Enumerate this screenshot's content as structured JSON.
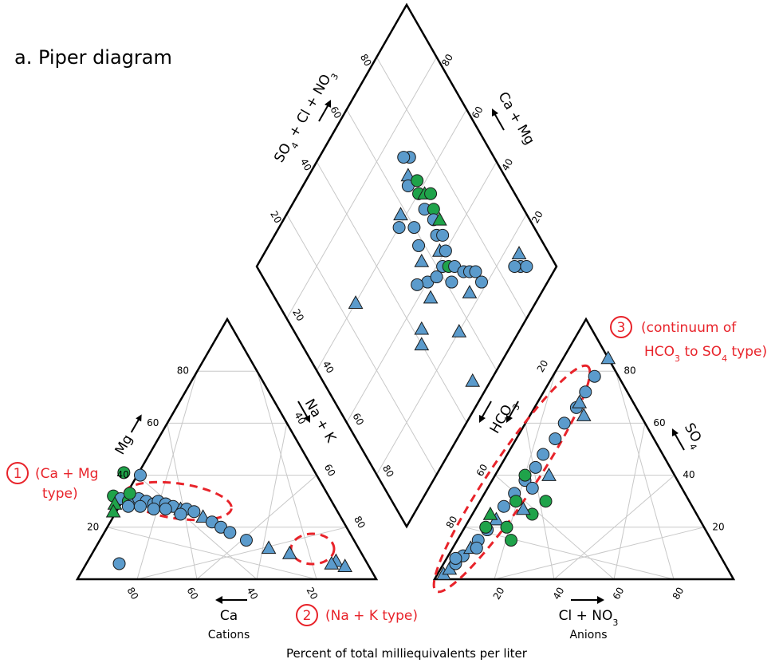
{
  "figure": {
    "title": "a. Piper diagram",
    "footer": "Percent of total milliequivalents per liter"
  },
  "cation_triangle": {
    "axis_mg": "Mg",
    "axis_ca": "Ca",
    "axis_nak": "Na + K",
    "caption": "Cations",
    "ticks_mg": [
      "20",
      "40",
      "60",
      "80"
    ],
    "ticks_ca": [
      "80",
      "60",
      "40",
      "20"
    ],
    "ticks_nak": [
      "40",
      "60",
      "80"
    ]
  },
  "anion_triangle": {
    "axis_so4": "SO",
    "axis_so4_sub": "4",
    "axis_cl": "Cl + NO",
    "axis_cl_sub": "3",
    "axis_hco3": "HCO",
    "axis_hco3_sub": "3",
    "caption": "Anions",
    "ticks_so4": [
      "20",
      "40",
      "60",
      "80"
    ],
    "ticks_cl": [
      "20",
      "40",
      "60",
      "80"
    ],
    "ticks_hco3": [
      "20",
      "60",
      "80"
    ]
  },
  "diamond": {
    "axis_left": "SO",
    "axis_left_sub1": "4",
    "axis_left_mid": " + Cl + NO",
    "axis_left_sub2": "3",
    "axis_right": "Ca + Mg",
    "ticks_left": [
      "20",
      "40",
      "60",
      "80"
    ],
    "ticks_right": [
      "20",
      "40",
      "60",
      "80"
    ],
    "ticks_lower": [
      "20",
      "40",
      "60",
      "80"
    ]
  },
  "annotations": [
    {
      "number": "1",
      "text_line1": "(Ca + Mg",
      "text_line2": "type)"
    },
    {
      "number": "2",
      "text_line1": "(Na + K type)"
    },
    {
      "number": "3",
      "text_line1": "(continuum of",
      "text_line2a": "HCO",
      "text_line2_sub1": "3",
      "text_line2b": " to SO",
      "text_line2_sub2": "4",
      "text_line2c": " type)"
    }
  ],
  "colors": {
    "blue": "#5b9bcc",
    "green": "#1fa34a",
    "annotation_red": "#e8232a",
    "grid": "#c8c8c8",
    "frame": "#000000"
  },
  "chart_data": {
    "type": "scatter",
    "marker_legend": {
      "circle": "circle marker",
      "triangle": "triangle marker"
    },
    "cations": [
      {
        "ca": 72,
        "mg": 32,
        "m": "c",
        "c": "g"
      },
      {
        "ca": 70,
        "mg": 31,
        "m": "c",
        "c": "b"
      },
      {
        "ca": 68,
        "mg": 30,
        "m": "c",
        "c": "g"
      },
      {
        "ca": 66,
        "mg": 30,
        "m": "c",
        "c": "b"
      },
      {
        "ca": 64,
        "mg": 31,
        "m": "c",
        "c": "b"
      },
      {
        "ca": 62,
        "mg": 30,
        "m": "c",
        "c": "b"
      },
      {
        "ca": 60,
        "mg": 29,
        "m": "c",
        "c": "b"
      },
      {
        "ca": 58,
        "mg": 30,
        "m": "c",
        "c": "b"
      },
      {
        "ca": 56,
        "mg": 29,
        "m": "c",
        "c": "b"
      },
      {
        "ca": 54,
        "mg": 28,
        "m": "c",
        "c": "b"
      },
      {
        "ca": 52,
        "mg": 27,
        "m": "t",
        "c": "b"
      },
      {
        "ca": 50,
        "mg": 27,
        "m": "c",
        "c": "b"
      },
      {
        "ca": 48,
        "mg": 26,
        "m": "c",
        "c": "b"
      },
      {
        "ca": 46,
        "mg": 24,
        "m": "t",
        "c": "b"
      },
      {
        "ca": 44,
        "mg": 22,
        "m": "c",
        "c": "b"
      },
      {
        "ca": 42,
        "mg": 20,
        "m": "c",
        "c": "b"
      },
      {
        "ca": 40,
        "mg": 18,
        "m": "c",
        "c": "b"
      },
      {
        "ca": 36,
        "mg": 15,
        "m": "c",
        "c": "b"
      },
      {
        "ca": 30,
        "mg": 12,
        "m": "t",
        "c": "b"
      },
      {
        "ca": 24,
        "mg": 10,
        "m": "t",
        "c": "b"
      },
      {
        "ca": 73,
        "mg": 29,
        "m": "t",
        "c": "g"
      },
      {
        "ca": 69,
        "mg": 28,
        "m": "c",
        "c": "b"
      },
      {
        "ca": 65,
        "mg": 28,
        "m": "c",
        "c": "b"
      },
      {
        "ca": 61,
        "mg": 27,
        "m": "c",
        "c": "b"
      },
      {
        "ca": 57,
        "mg": 27,
        "m": "c",
        "c": "b"
      },
      {
        "ca": 53,
        "mg": 25,
        "m": "c",
        "c": "b"
      },
      {
        "ca": 64,
        "mg": 41,
        "m": "c",
        "c": "g"
      },
      {
        "ca": 59,
        "mg": 40,
        "m": "c",
        "c": "b"
      },
      {
        "ca": 66,
        "mg": 33,
        "m": "c",
        "c": "g"
      },
      {
        "ca": 75,
        "mg": 26,
        "m": "t",
        "c": "g"
      },
      {
        "ca": 83,
        "mg": 6,
        "m": "c",
        "c": "b"
      },
      {
        "ca": 10,
        "mg": 7,
        "m": "t",
        "c": "b"
      },
      {
        "ca": 8,
        "mg": 5,
        "m": "t",
        "c": "b"
      },
      {
        "ca": 12,
        "mg": 6,
        "m": "t",
        "c": "b"
      }
    ],
    "anions": [
      {
        "cl": 2,
        "so4": 2,
        "m": "t",
        "c": "b"
      },
      {
        "cl": 3,
        "so4": 4,
        "m": "t",
        "c": "b"
      },
      {
        "cl": 4,
        "so4": 6,
        "m": "c",
        "c": "b"
      },
      {
        "cl": 5,
        "so4": 9,
        "m": "c",
        "c": "b"
      },
      {
        "cl": 6,
        "so4": 12,
        "m": "t",
        "c": "b"
      },
      {
        "cl": 7,
        "so4": 15,
        "m": "c",
        "c": "b"
      },
      {
        "cl": 8,
        "so4": 19,
        "m": "c",
        "c": "b"
      },
      {
        "cl": 9,
        "so4": 23,
        "m": "t",
        "c": "b"
      },
      {
        "cl": 9,
        "so4": 28,
        "m": "c",
        "c": "b"
      },
      {
        "cl": 10,
        "so4": 33,
        "m": "c",
        "c": "b"
      },
      {
        "cl": 11,
        "so4": 38,
        "m": "c",
        "c": "b"
      },
      {
        "cl": 12,
        "so4": 43,
        "m": "c",
        "c": "b"
      },
      {
        "cl": 12,
        "so4": 48,
        "m": "c",
        "c": "b"
      },
      {
        "cl": 13,
        "so4": 54,
        "m": "c",
        "c": "b"
      },
      {
        "cl": 13,
        "so4": 60,
        "m": "c",
        "c": "b"
      },
      {
        "cl": 14,
        "so4": 66,
        "m": "c",
        "c": "b"
      },
      {
        "cl": 14,
        "so4": 72,
        "m": "c",
        "c": "b"
      },
      {
        "cl": 14,
        "so4": 78,
        "m": "c",
        "c": "b"
      },
      {
        "cl": 10,
        "so4": 40,
        "m": "c",
        "c": "g"
      },
      {
        "cl": 12,
        "so4": 30,
        "m": "c",
        "c": "g"
      },
      {
        "cl": 14,
        "so4": 20,
        "m": "c",
        "c": "g"
      },
      {
        "cl": 18,
        "so4": 15,
        "m": "c",
        "c": "g"
      },
      {
        "cl": 20,
        "so4": 25,
        "m": "c",
        "c": "g"
      },
      {
        "cl": 22,
        "so4": 30,
        "m": "c",
        "c": "g"
      },
      {
        "cl": 15,
        "so4": 35,
        "m": "c",
        "c": "b"
      },
      {
        "cl": 18,
        "so4": 40,
        "m": "t",
        "c": "b"
      },
      {
        "cl": 16,
        "so4": 27,
        "m": "t",
        "c": "b"
      },
      {
        "cl": 7,
        "so4": 20,
        "m": "c",
        "c": "g"
      },
      {
        "cl": 6,
        "so4": 25,
        "m": "t",
        "c": "g"
      },
      {
        "cl": 8,
        "so4": 12,
        "m": "c",
        "c": "b"
      },
      {
        "cl": 18,
        "so4": 63,
        "m": "t",
        "c": "b"
      },
      {
        "cl": 15,
        "so4": 85,
        "m": "t",
        "c": "b"
      },
      {
        "cl": 14,
        "so4": 68,
        "m": "t",
        "c": "b"
      },
      {
        "cl": 3,
        "so4": 8,
        "m": "c",
        "c": "b"
      }
    ],
    "diamond": [
      {
        "anion": 70,
        "cation": 72,
        "m": "c",
        "c": "b"
      },
      {
        "anion": 72,
        "cation": 70,
        "m": "c",
        "c": "b"
      },
      {
        "anion": 67,
        "cation": 68,
        "m": "t",
        "c": "b"
      },
      {
        "anion": 65,
        "cation": 66,
        "m": "c",
        "c": "b"
      },
      {
        "anion": 63,
        "cation": 70,
        "m": "c",
        "c": "g"
      },
      {
        "anion": 60,
        "cation": 68,
        "m": "c",
        "c": "g"
      },
      {
        "anion": 58,
        "cation": 70,
        "m": "t",
        "c": "g"
      },
      {
        "anion": 56,
        "cation": 72,
        "m": "c",
        "c": "g"
      },
      {
        "anion": 55,
        "cation": 67,
        "m": "c",
        "c": "b"
      },
      {
        "anion": 52,
        "cation": 70,
        "m": "c",
        "c": "g"
      },
      {
        "anion": 50,
        "cation": 68,
        "m": "c",
        "c": "b"
      },
      {
        "anion": 48,
        "cation": 70,
        "m": "t",
        "c": "g"
      },
      {
        "anion": 46,
        "cation": 66,
        "m": "c",
        "c": "b"
      },
      {
        "anion": 44,
        "cation": 68,
        "m": "c",
        "c": "b"
      },
      {
        "anion": 42,
        "cation": 64,
        "m": "t",
        "c": "b"
      },
      {
        "anion": 40,
        "cation": 66,
        "m": "c",
        "c": "b"
      },
      {
        "anion": 38,
        "cation": 62,
        "m": "c",
        "c": "b"
      },
      {
        "anion": 36,
        "cation": 64,
        "m": "c",
        "c": "g"
      },
      {
        "anion": 34,
        "cation": 66,
        "m": "c",
        "c": "b"
      },
      {
        "anion": 32,
        "cation": 62,
        "m": "c",
        "c": "b"
      },
      {
        "anion": 30,
        "cation": 68,
        "m": "c",
        "c": "b"
      },
      {
        "anion": 28,
        "cation": 70,
        "m": "c",
        "c": "b"
      },
      {
        "anion": 26,
        "cation": 72,
        "m": "c",
        "c": "b"
      },
      {
        "anion": 24,
        "cation": 66,
        "m": "t",
        "c": "b"
      },
      {
        "anion": 22,
        "cation": 72,
        "m": "c",
        "c": "b"
      },
      {
        "anion": 50,
        "cation": 58,
        "m": "c",
        "c": "b"
      },
      {
        "anion": 46,
        "cation": 56,
        "m": "t",
        "c": "b"
      },
      {
        "anion": 40,
        "cation": 54,
        "m": "c",
        "c": "b"
      },
      {
        "anion": 38,
        "cation": 58,
        "m": "c",
        "c": "b"
      },
      {
        "anion": 36,
        "cation": 52,
        "m": "t",
        "c": "b"
      },
      {
        "anion": 55,
        "cation": 60,
        "m": "c",
        "c": "b"
      },
      {
        "anion": 62,
        "cation": 58,
        "m": "t",
        "c": "b"
      },
      {
        "anion": 60,
        "cation": 55,
        "m": "c",
        "c": "b"
      },
      {
        "anion": 15,
        "cation": 90,
        "m": "t",
        "c": "b"
      },
      {
        "anion": 12,
        "cation": 88,
        "m": "c",
        "c": "b"
      },
      {
        "anion": 10,
        "cation": 90,
        "m": "c",
        "c": "b"
      },
      {
        "anion": 14,
        "cation": 86,
        "m": "c",
        "c": "b"
      },
      {
        "anion": 60,
        "cation": 26,
        "m": "t",
        "c": "b"
      },
      {
        "anion": 43,
        "cation": 50,
        "m": "c",
        "c": "b"
      },
      {
        "anion": 20,
        "cation": 55,
        "m": "t",
        "c": "b"
      },
      {
        "anion": 33,
        "cation": 43,
        "m": "t",
        "c": "b"
      },
      {
        "anion": 30,
        "cation": 40,
        "m": "t",
        "c": "b"
      },
      {
        "anion": 6,
        "cation": 50,
        "m": "t",
        "c": "b"
      }
    ]
  }
}
